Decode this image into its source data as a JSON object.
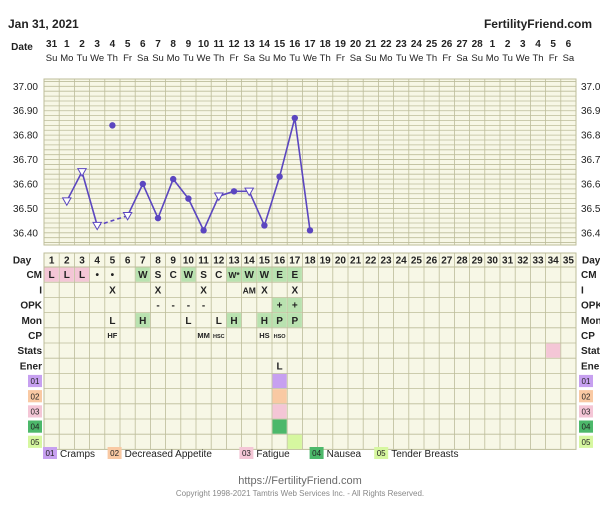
{
  "header": {
    "date": "Jan 31, 2021",
    "brand": "FertilityFriend.com"
  },
  "footer": {
    "url": "https://FertilityFriend.com",
    "copyright": "Copyright 1998-2021 Tamtris Web Services Inc. - All Rights Reserved."
  },
  "chart_data": {
    "type": "line",
    "date_label": "Date",
    "dates": [
      "31",
      "1",
      "2",
      "3",
      "4",
      "5",
      "6",
      "7",
      "8",
      "9",
      "10",
      "11",
      "12",
      "13",
      "14",
      "15",
      "16",
      "17",
      "18",
      "19",
      "20",
      "21",
      "22",
      "23",
      "24",
      "25",
      "26",
      "27",
      "28",
      "1",
      "2",
      "3",
      "4",
      "5",
      "6"
    ],
    "weekdays": [
      "Su",
      "Mo",
      "Tu",
      "We",
      "Th",
      "Fr",
      "Sa",
      "Su",
      "Mo",
      "Tu",
      "We",
      "Th",
      "Fr",
      "Sa",
      "Su",
      "Mo",
      "Tu",
      "We",
      "Th",
      "Fr",
      "Sa",
      "Su",
      "Mo",
      "Tu",
      "We",
      "Th",
      "Fr",
      "Sa",
      "Su",
      "Mo",
      "Tu",
      "We",
      "Th",
      "Fr",
      "Sa"
    ],
    "day_label": "Day",
    "days": [
      "1",
      "2",
      "3",
      "4",
      "5",
      "6",
      "7",
      "8",
      "9",
      "10",
      "11",
      "12",
      "13",
      "14",
      "15",
      "16",
      "17",
      "18",
      "19",
      "20",
      "21",
      "22",
      "23",
      "24",
      "25",
      "26",
      "27",
      "28",
      "29",
      "30",
      "31",
      "32",
      "33",
      "34",
      "35"
    ],
    "y_ticks": [
      "37.00",
      "36.90",
      "36.80",
      "36.70",
      "36.60",
      "36.50",
      "36.40"
    ],
    "ylim": [
      36.35,
      37.03
    ],
    "temperatures": [
      {
        "day": 2,
        "temp": 36.53,
        "marker": "open-triangle-down"
      },
      {
        "day": 3,
        "temp": 36.65,
        "marker": "open-triangle-down"
      },
      {
        "day": 4,
        "temp": 36.43,
        "marker": "open-triangle-down"
      },
      {
        "day": 5,
        "temp": 36.84,
        "marker": "dot"
      },
      {
        "day": 6,
        "temp": 36.47,
        "marker": "open-triangle-down"
      },
      {
        "day": 7,
        "temp": 36.6,
        "marker": "dot"
      },
      {
        "day": 8,
        "temp": 36.46,
        "marker": "dot"
      },
      {
        "day": 9,
        "temp": 36.62,
        "marker": "dot"
      },
      {
        "day": 10,
        "temp": 36.54,
        "marker": "dot"
      },
      {
        "day": 11,
        "temp": 36.41,
        "marker": "dot"
      },
      {
        "day": 12,
        "temp": 36.55,
        "marker": "open-triangle-down"
      },
      {
        "day": 13,
        "temp": 36.57,
        "marker": "dot"
      },
      {
        "day": 14,
        "temp": 36.57,
        "marker": "open-triangle-down"
      },
      {
        "day": 15,
        "temp": 36.43,
        "marker": "dot"
      },
      {
        "day": 16,
        "temp": 36.63,
        "marker": "dot"
      },
      {
        "day": 17,
        "temp": 36.87,
        "marker": "dot"
      },
      {
        "day": 18,
        "temp": 36.41,
        "marker": "dot"
      }
    ],
    "line_segments": [
      {
        "from": 2,
        "to": 3,
        "style": "solid"
      },
      {
        "from": 3,
        "to": 4,
        "style": "solid"
      },
      {
        "from": 4,
        "to": 6,
        "style": "dashed"
      },
      {
        "from": 6,
        "to": 7,
        "style": "solid"
      },
      {
        "from": 7,
        "to": 8,
        "style": "solid"
      },
      {
        "from": 8,
        "to": 9,
        "style": "solid"
      },
      {
        "from": 9,
        "to": 10,
        "style": "solid"
      },
      {
        "from": 10,
        "to": 11,
        "style": "solid"
      },
      {
        "from": 11,
        "to": 12,
        "style": "solid"
      },
      {
        "from": 12,
        "to": 13,
        "style": "solid"
      },
      {
        "from": 13,
        "to": 14,
        "style": "solid"
      },
      {
        "from": 14,
        "to": 15,
        "style": "solid"
      },
      {
        "from": 15,
        "to": 16,
        "style": "solid"
      },
      {
        "from": 16,
        "to": 17,
        "style": "solid"
      },
      {
        "from": 17,
        "to": 18,
        "style": "solid"
      }
    ],
    "rows": [
      {
        "label": "CM",
        "cells": [
          {
            "day": 1,
            "text": "L",
            "bg": "#f4c6d6"
          },
          {
            "day": 2,
            "text": "L",
            "bg": "#f4c6d6"
          },
          {
            "day": 3,
            "text": "L",
            "bg": "#f4c6d6"
          },
          {
            "day": 4,
            "text": "•",
            "bg": ""
          },
          {
            "day": 5,
            "text": "•",
            "bg": ""
          },
          {
            "day": 7,
            "text": "W",
            "bg": "#b9e2b0"
          },
          {
            "day": 8,
            "text": "S",
            "bg": ""
          },
          {
            "day": 9,
            "text": "C",
            "bg": ""
          },
          {
            "day": 10,
            "text": "W",
            "bg": "#b9e2b0"
          },
          {
            "day": 11,
            "text": "S",
            "bg": ""
          },
          {
            "day": 12,
            "text": "C",
            "bg": ""
          },
          {
            "day": 13,
            "text": "W*",
            "bg": "#b9e2b0"
          },
          {
            "day": 14,
            "text": "W",
            "bg": "#b9e2b0"
          },
          {
            "day": 15,
            "text": "W",
            "bg": "#b9e2b0"
          },
          {
            "day": 16,
            "text": "E",
            "bg": "#b9e2b0"
          },
          {
            "day": 17,
            "text": "E",
            "bg": "#b9e2b0"
          }
        ]
      },
      {
        "label": "I",
        "cells": [
          {
            "day": 5,
            "text": "X",
            "bg": ""
          },
          {
            "day": 8,
            "text": "X",
            "bg": ""
          },
          {
            "day": 11,
            "text": "X",
            "bg": ""
          },
          {
            "day": 14,
            "text": "AM",
            "bg": ""
          },
          {
            "day": 15,
            "text": "X",
            "bg": ""
          },
          {
            "day": 17,
            "text": "X",
            "bg": ""
          }
        ]
      },
      {
        "label": "OPK",
        "cells": [
          {
            "day": 8,
            "text": "-",
            "bg": ""
          },
          {
            "day": 9,
            "text": "-",
            "bg": ""
          },
          {
            "day": 10,
            "text": "-",
            "bg": ""
          },
          {
            "day": 11,
            "text": "-",
            "bg": ""
          },
          {
            "day": 16,
            "text": "+",
            "bg": "#b9e2b0"
          },
          {
            "day": 17,
            "text": "+",
            "bg": "#b9e2b0"
          }
        ]
      },
      {
        "label": "Mon",
        "cells": [
          {
            "day": 5,
            "text": "L",
            "bg": ""
          },
          {
            "day": 7,
            "text": "H",
            "bg": "#b9e2b0"
          },
          {
            "day": 10,
            "text": "L",
            "bg": ""
          },
          {
            "day": 12,
            "text": "L",
            "bg": ""
          },
          {
            "day": 13,
            "text": "H",
            "bg": "#b9e2b0"
          },
          {
            "day": 15,
            "text": "H",
            "bg": "#b9e2b0"
          },
          {
            "day": 16,
            "text": "P",
            "bg": "#b9e2b0"
          },
          {
            "day": 17,
            "text": "P",
            "bg": "#b9e2b0"
          }
        ]
      },
      {
        "label": "CP",
        "cells": [
          {
            "day": 5,
            "text": "HF",
            "bg": "",
            "small": true
          },
          {
            "day": 11,
            "text": "MM",
            "bg": "",
            "small": true
          },
          {
            "day": 12,
            "text": "HSC",
            "bg": "",
            "tiny": true
          },
          {
            "day": 15,
            "text": "HS",
            "bg": "",
            "small": true
          },
          {
            "day": 16,
            "text": "HSO",
            "bg": "",
            "tiny": true
          }
        ]
      },
      {
        "label": "Stats",
        "cells": [
          {
            "day": 34,
            "text": "",
            "bg": "#f4c6d6"
          }
        ]
      },
      {
        "label": "Ener",
        "cells": [
          {
            "day": 16,
            "text": "L",
            "bg": ""
          }
        ]
      },
      {
        "label": "01",
        "label_bg": "#c7a0f0",
        "cells": [
          {
            "day": 16,
            "text": "",
            "bg": "#c7a0f0"
          }
        ]
      },
      {
        "label": "02",
        "label_bg": "#f9c9a3",
        "cells": [
          {
            "day": 16,
            "text": "",
            "bg": "#f9c9a3"
          }
        ]
      },
      {
        "label": "03",
        "label_bg": "#f4c6d6",
        "cells": [
          {
            "day": 16,
            "text": "",
            "bg": "#f4c6d6"
          }
        ]
      },
      {
        "label": "04",
        "label_bg": "#4cb86a",
        "cells": [
          {
            "day": 16,
            "text": "",
            "bg": "#4cb86a"
          }
        ]
      },
      {
        "label": "05",
        "label_bg": "#d6f7a0",
        "cells": [
          {
            "day": 17,
            "text": "",
            "bg": "#d6f7a0"
          }
        ]
      }
    ],
    "legend": [
      {
        "code": "01",
        "label": "Cramps",
        "color": "#c7a0f0"
      },
      {
        "code": "02",
        "label": "Decreased Appetite",
        "color": "#f9c9a3"
      },
      {
        "code": "03",
        "label": "Fatigue",
        "color": "#f4c6d6"
      },
      {
        "code": "04",
        "label": "Nausea",
        "color": "#4cb86a"
      },
      {
        "code": "05",
        "label": "Tender Breasts",
        "color": "#d6f7a0"
      }
    ],
    "colors": {
      "grid_bg": "#f7f7e6",
      "grid_line": "#bdbd9a",
      "line": "#5b46c0"
    }
  }
}
